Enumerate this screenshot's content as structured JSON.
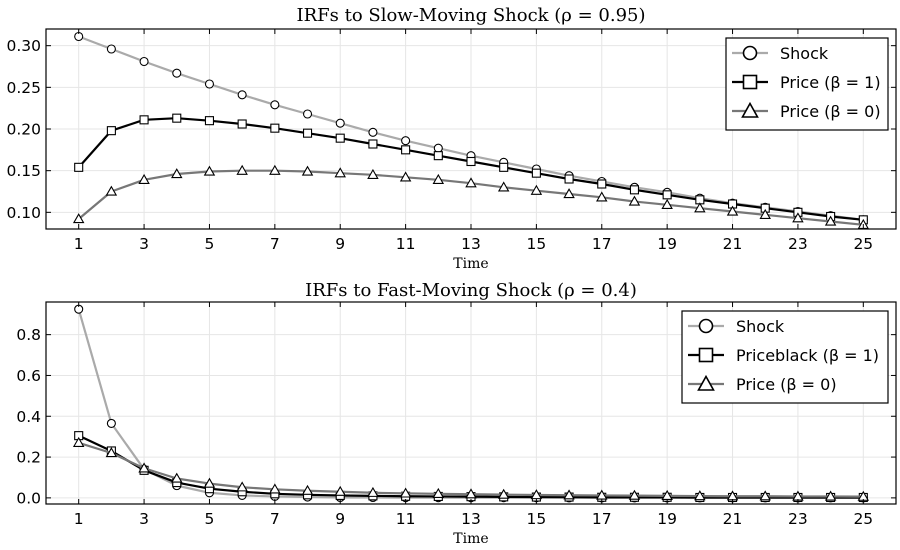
{
  "chart_data": [
    {
      "type": "line",
      "title": "IRFs to Slow-Moving Shock (ρ = 0.95)",
      "xlabel": "Time",
      "ylabel": "",
      "xlim": [
        0,
        26
      ],
      "ylim": [
        0.08,
        0.32
      ],
      "xticks": [
        1,
        3,
        5,
        7,
        9,
        11,
        13,
        15,
        17,
        19,
        21,
        23,
        25
      ],
      "yticks": [
        0.1,
        0.15,
        0.2,
        0.25,
        0.3
      ],
      "ytick_labels": [
        "0.10",
        "0.15",
        "0.20",
        "0.25",
        "0.30"
      ],
      "grid": true,
      "legend_position": "top-right",
      "x": [
        1,
        2,
        3,
        4,
        5,
        6,
        7,
        8,
        9,
        10,
        11,
        12,
        13,
        14,
        15,
        16,
        17,
        18,
        19,
        20,
        21,
        22,
        23,
        24,
        25
      ],
      "series": [
        {
          "name": "Shock",
          "color": "#aaaaaa",
          "marker": "circle",
          "values": [
            0.311,
            0.296,
            0.281,
            0.267,
            0.254,
            0.241,
            0.229,
            0.218,
            0.207,
            0.196,
            0.186,
            0.177,
            0.168,
            0.16,
            0.152,
            0.144,
            0.137,
            0.13,
            0.124,
            0.117,
            0.111,
            0.106,
            0.101,
            0.096,
            0.091
          ]
        },
        {
          "name": "Price (β = 1)",
          "color": "#000000",
          "marker": "square",
          "values": [
            0.154,
            0.198,
            0.211,
            0.213,
            0.21,
            0.206,
            0.201,
            0.195,
            0.189,
            0.182,
            0.175,
            0.168,
            0.161,
            0.154,
            0.147,
            0.14,
            0.134,
            0.127,
            0.121,
            0.115,
            0.11,
            0.105,
            0.1,
            0.095,
            0.091
          ]
        },
        {
          "name": "Price (β = 0)",
          "color": "#777777",
          "marker": "triangle",
          "values": [
            0.092,
            0.125,
            0.139,
            0.146,
            0.149,
            0.15,
            0.15,
            0.149,
            0.147,
            0.145,
            0.142,
            0.139,
            0.135,
            0.13,
            0.126,
            0.122,
            0.118,
            0.113,
            0.109,
            0.105,
            0.101,
            0.097,
            0.093,
            0.089,
            0.085
          ]
        }
      ]
    },
    {
      "type": "line",
      "title": "IRFs to Fast-Moving Shock (ρ = 0.4)",
      "xlabel": "Time",
      "ylabel": "",
      "xlim": [
        0,
        26
      ],
      "ylim": [
        -0.03,
        0.96
      ],
      "xticks": [
        1,
        3,
        5,
        7,
        9,
        11,
        13,
        15,
        17,
        19,
        21,
        23,
        25
      ],
      "yticks": [
        0.0,
        0.2,
        0.4,
        0.6,
        0.8
      ],
      "ytick_labels": [
        "0.0",
        "0.2",
        "0.4",
        "0.6",
        "0.8"
      ],
      "grid": true,
      "legend_position": "top-right",
      "x": [
        1,
        2,
        3,
        4,
        5,
        6,
        7,
        8,
        9,
        10,
        11,
        12,
        13,
        14,
        15,
        16,
        17,
        18,
        19,
        20,
        21,
        22,
        23,
        24,
        25
      ],
      "series": [
        {
          "name": "Shock",
          "color": "#aaaaaa",
          "marker": "circle",
          "values": [
            0.925,
            0.365,
            0.14,
            0.06,
            0.025,
            0.012,
            0.007,
            0.004,
            0.002,
            0.002,
            0.001,
            0.001,
            0.001,
            0.001,
            0.001,
            0.0,
            0.0,
            0.0,
            0.0,
            0.0,
            0.0,
            0.0,
            0.0,
            0.0,
            0.0
          ]
        },
        {
          "name": "Priceblack (β = 1)",
          "color": "#000000",
          "marker": "square",
          "values": [
            0.305,
            0.23,
            0.135,
            0.075,
            0.045,
            0.03,
            0.02,
            0.015,
            0.012,
            0.01,
            0.008,
            0.007,
            0.006,
            0.005,
            0.004,
            0.004,
            0.003,
            0.003,
            0.003,
            0.002,
            0.002,
            0.002,
            0.002,
            0.002,
            0.002
          ]
        },
        {
          "name": "Price (β = 0)",
          "color": "#777777",
          "marker": "triangle",
          "values": [
            0.27,
            0.22,
            0.145,
            0.095,
            0.07,
            0.052,
            0.042,
            0.035,
            0.03,
            0.025,
            0.022,
            0.02,
            0.018,
            0.016,
            0.014,
            0.013,
            0.012,
            0.011,
            0.01,
            0.009,
            0.008,
            0.008,
            0.007,
            0.007,
            0.006
          ]
        }
      ]
    }
  ]
}
